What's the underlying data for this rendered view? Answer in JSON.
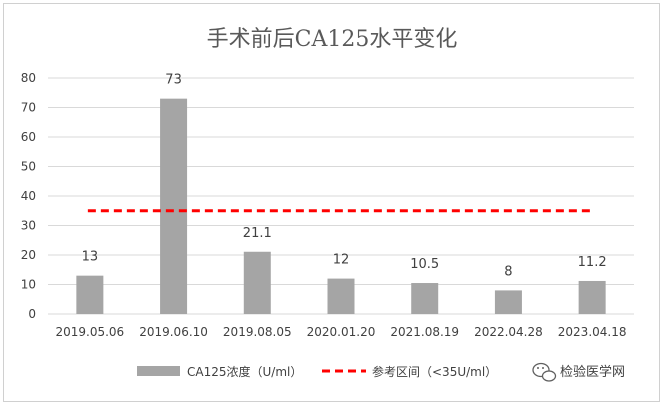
{
  "chart_data": {
    "type": "bar",
    "title": "手术前后CA125水平变化",
    "categories": [
      "2019.05.06",
      "2019.06.10",
      "2019.08.05",
      "2020.01.20",
      "2021.08.19",
      "2022.04.28",
      "2023.04.18"
    ],
    "series": [
      {
        "name": "CA125浓度（U/ml）",
        "values": [
          13,
          73,
          21.1,
          12,
          10.5,
          8,
          11.2
        ],
        "color": "#a5a5a5"
      }
    ],
    "data_labels": [
      "13",
      "73",
      "21.1",
      "12",
      "10.5",
      "8",
      "11.2"
    ],
    "reference_line": {
      "name": "参考区间（<35U/ml）",
      "value": 35,
      "color": "#ff0000",
      "style": "dashed"
    },
    "ylim": [
      0,
      80
    ],
    "yticks": [
      0,
      10,
      20,
      30,
      40,
      50,
      60,
      70,
      80
    ],
    "grid": "horizontal",
    "legend": "bottom",
    "xlabel": "",
    "ylabel": ""
  },
  "watermark": {
    "text": "检验医学网",
    "icon": "wechat-icon"
  }
}
